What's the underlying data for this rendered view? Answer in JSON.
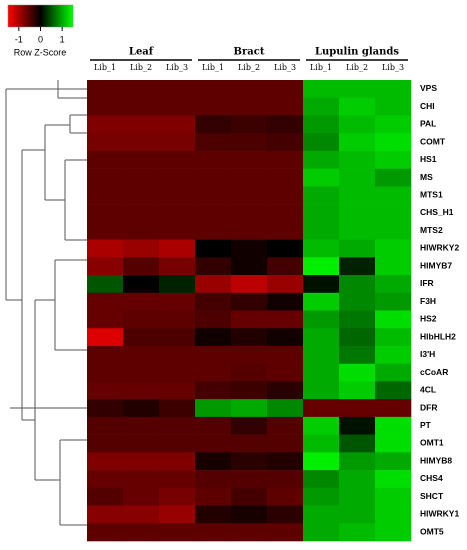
{
  "chart_data": {
    "type": "heatmap",
    "colorbar": {
      "title": "Row Z-Score",
      "xlim": [
        -1.5,
        1.5
      ],
      "xticks": [
        {
          "value": -1,
          "label": "-1"
        },
        0,
        1
      ]
    },
    "colors": {
      "low": "#ff0000",
      "mid": "#000000",
      "high": "#00ff00"
    },
    "groups": [
      "Leaf",
      "Bract",
      "Lupulin glands"
    ],
    "columns": [
      "Lib_1",
      "Lib_2",
      "Lib_3",
      "Lib_1",
      "Lib_2",
      "Lib_3",
      "Lib_1",
      "Lib_2",
      "Lib_3"
    ],
    "rows": [
      "VPS",
      "CHI",
      "PAL",
      "COMT",
      "HS1",
      "MS",
      "MTS1",
      "CHS_H1",
      "MTS2",
      "HlWRKY2",
      "HlMYB7",
      "IFR",
      "F3H",
      "HS2",
      "HlbHLH2",
      "I3'H",
      "cCoAR",
      "4CL",
      "DFR",
      "PT",
      "OMT1",
      "HlMYB8",
      "CHS4",
      "SHCT",
      "HlWRKY1",
      "OMT5"
    ],
    "values": [
      [
        -0.55,
        -0.55,
        -0.55,
        -0.55,
        -0.55,
        -0.55,
        1.1,
        1.1,
        1.1
      ],
      [
        -0.55,
        -0.55,
        -0.55,
        -0.55,
        -0.55,
        -0.55,
        1.0,
        1.2,
        1.1
      ],
      [
        -0.75,
        -0.75,
        -0.75,
        -0.3,
        -0.35,
        -0.3,
        0.9,
        1.1,
        1.2
      ],
      [
        -0.7,
        -0.7,
        -0.7,
        -0.45,
        -0.45,
        -0.4,
        0.8,
        1.2,
        1.3
      ],
      [
        -0.55,
        -0.55,
        -0.55,
        -0.55,
        -0.55,
        -0.55,
        1.0,
        1.1,
        1.2
      ],
      [
        -0.55,
        -0.55,
        -0.55,
        -0.55,
        -0.55,
        -0.55,
        1.2,
        1.1,
        0.9
      ],
      [
        -0.55,
        -0.55,
        -0.55,
        -0.55,
        -0.55,
        -0.55,
        1.0,
        1.1,
        1.1
      ],
      [
        -0.55,
        -0.55,
        -0.55,
        -0.55,
        -0.55,
        -0.55,
        1.0,
        1.1,
        1.1
      ],
      [
        -0.55,
        -0.55,
        -0.55,
        -0.55,
        -0.55,
        -0.55,
        1.0,
        1.1,
        1.1
      ],
      [
        -1.0,
        -0.9,
        -1.0,
        0.0,
        -0.1,
        0.0,
        1.1,
        1.0,
        1.2
      ],
      [
        -0.8,
        -0.5,
        -0.7,
        -0.3,
        -0.1,
        -0.4,
        1.4,
        0.2,
        1.2
      ],
      [
        0.5,
        0.0,
        0.2,
        -0.9,
        -1.1,
        -0.9,
        0.1,
        0.8,
        1.0
      ],
      [
        -0.6,
        -0.6,
        -0.6,
        -0.4,
        -0.3,
        -0.1,
        1.2,
        0.8,
        0.9
      ],
      [
        -0.6,
        -0.55,
        -0.55,
        -0.45,
        -0.6,
        -0.6,
        0.9,
        0.7,
        1.3
      ],
      [
        -1.3,
        -0.45,
        -0.45,
        -0.1,
        -0.2,
        -0.1,
        1.0,
        0.6,
        1.1
      ],
      [
        -0.55,
        -0.55,
        -0.55,
        -0.55,
        -0.55,
        -0.55,
        1.0,
        0.7,
        1.2
      ],
      [
        -0.55,
        -0.55,
        -0.55,
        -0.55,
        -0.5,
        -0.55,
        1.0,
        1.3,
        1.0
      ],
      [
        -0.6,
        -0.6,
        -0.6,
        -0.4,
        -0.35,
        -0.25,
        1.0,
        1.2,
        0.6
      ],
      [
        -0.3,
        -0.2,
        -0.35,
        0.9,
        1.0,
        0.8,
        -0.6,
        -0.6,
        -0.6
      ],
      [
        -0.5,
        -0.5,
        -0.5,
        -0.5,
        -0.3,
        -0.5,
        1.2,
        0.1,
        1.3
      ],
      [
        -0.5,
        -0.5,
        -0.5,
        -0.5,
        -0.5,
        -0.5,
        1.1,
        0.5,
        1.3
      ],
      [
        -0.75,
        -0.75,
        -0.75,
        -0.15,
        -0.25,
        -0.2,
        1.4,
        0.9,
        1.0
      ],
      [
        -0.6,
        -0.6,
        -0.6,
        -0.5,
        -0.5,
        -0.5,
        0.8,
        1.0,
        1.3
      ],
      [
        -0.5,
        -0.6,
        -0.7,
        -0.55,
        -0.4,
        -0.55,
        0.9,
        1.0,
        1.2
      ],
      [
        -0.8,
        -0.8,
        -0.9,
        -0.2,
        -0.15,
        -0.25,
        1.0,
        1.0,
        1.2
      ],
      [
        -0.55,
        -0.55,
        -0.55,
        -0.55,
        -0.55,
        -0.55,
        1.0,
        1.1,
        1.2
      ]
    ]
  }
}
